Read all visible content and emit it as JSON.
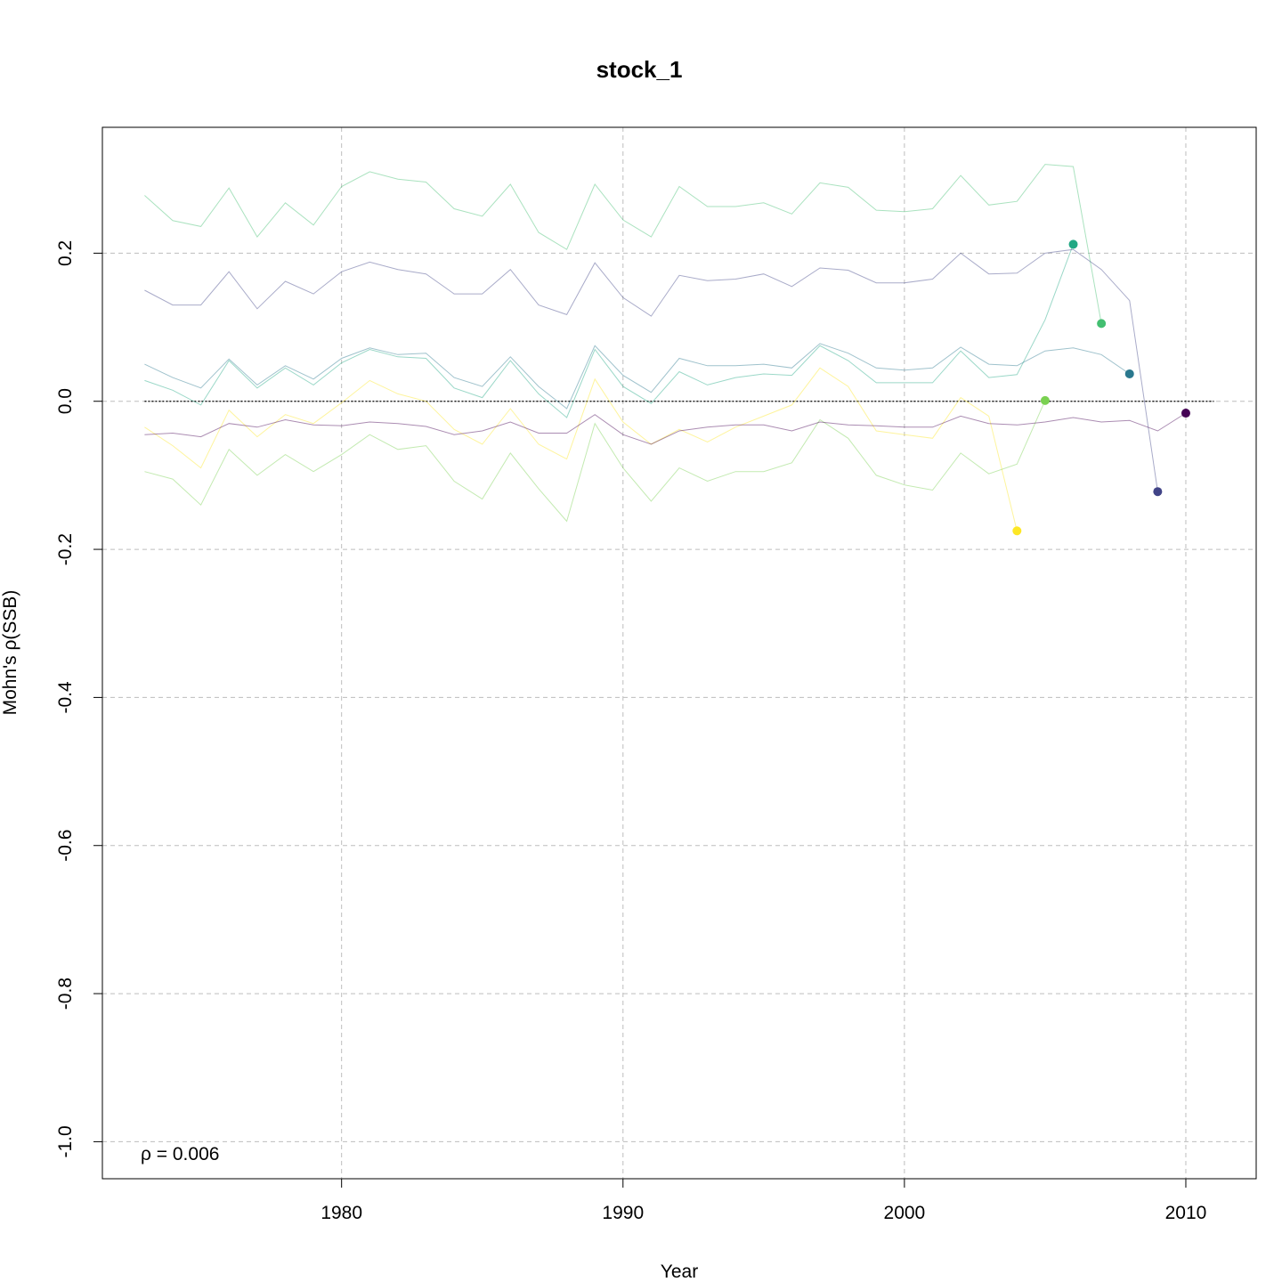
{
  "chart_data": {
    "type": "line",
    "title": "stock_1",
    "xlabel": "Year",
    "ylabel": "Mohn's ρ(SSB)",
    "xlim": [
      1971.5,
      2012.5
    ],
    "ylim": [
      -1.05,
      0.37
    ],
    "x_ticks": [
      1980,
      1990,
      2000,
      2010
    ],
    "x_tick_labels": [
      "1980",
      "1990",
      "2000",
      "2010"
    ],
    "y_ticks": [
      0.2,
      0.0,
      -0.2,
      -0.4,
      -0.6,
      -0.8,
      -1.0
    ],
    "y_tick_labels": [
      "0.2",
      "0.0",
      "-0.2",
      "-0.4",
      "-0.6",
      "-0.8",
      "-1.0"
    ],
    "grid": true,
    "reference_line": {
      "y": 0,
      "x_from": 1973,
      "x_to": 2011,
      "style": "dotted"
    },
    "annotation": "ρ = 0.006",
    "series": [
      {
        "color": "#FDE725",
        "x": [
          1973,
          1974,
          1975,
          1976,
          1977,
          1978,
          1979,
          1980,
          1981,
          1982,
          1983,
          1984,
          1985,
          1986,
          1987,
          1988,
          1989,
          1990,
          1991,
          1992,
          1993,
          1994,
          1995,
          1996,
          1997,
          1998,
          1999,
          2000,
          2001,
          2002,
          2003,
          2004
        ],
        "values": [
          -0.035,
          -0.06,
          -0.09,
          -0.012,
          -0.048,
          -0.018,
          -0.03,
          -0.002,
          0.028,
          0.01,
          0.0,
          -0.038,
          -0.058,
          -0.01,
          -0.058,
          -0.078,
          0.03,
          -0.028,
          -0.058,
          -0.038,
          -0.055,
          -0.035,
          -0.02,
          -0.005,
          0.045,
          0.02,
          -0.04,
          -0.045,
          -0.05,
          0.005,
          -0.02,
          -0.175
        ],
        "end_point": [
          2004,
          -0.175
        ]
      },
      {
        "color": "#7AD151",
        "x": [
          1973,
          1974,
          1975,
          1976,
          1977,
          1978,
          1979,
          1980,
          1981,
          1982,
          1983,
          1984,
          1985,
          1986,
          1987,
          1988,
          1989,
          1990,
          1991,
          1992,
          1993,
          1994,
          1995,
          1996,
          1997,
          1998,
          1999,
          2000,
          2001,
          2002,
          2003,
          2004,
          2005
        ],
        "values": [
          -0.095,
          -0.105,
          -0.14,
          -0.065,
          -0.1,
          -0.072,
          -0.095,
          -0.072,
          -0.045,
          -0.065,
          -0.06,
          -0.108,
          -0.132,
          -0.07,
          -0.118,
          -0.162,
          -0.03,
          -0.09,
          -0.135,
          -0.09,
          -0.108,
          -0.095,
          -0.095,
          -0.083,
          -0.025,
          -0.05,
          -0.1,
          -0.113,
          -0.12,
          -0.07,
          -0.098,
          -0.085,
          0.001
        ],
        "end_point": [
          2005,
          0.001
        ]
      },
      {
        "color": "#22A884",
        "x": [
          1973,
          1974,
          1975,
          1976,
          1977,
          1978,
          1979,
          1980,
          1981,
          1982,
          1983,
          1984,
          1985,
          1986,
          1987,
          1988,
          1989,
          1990,
          1991,
          1992,
          1993,
          1994,
          1995,
          1996,
          1997,
          1998,
          1999,
          2000,
          2001,
          2002,
          2003,
          2004,
          2005,
          2006
        ],
        "values": [
          0.028,
          0.015,
          -0.005,
          0.055,
          0.018,
          0.045,
          0.022,
          0.052,
          0.07,
          0.06,
          0.058,
          0.018,
          0.005,
          0.055,
          0.01,
          -0.022,
          0.07,
          0.02,
          -0.003,
          0.04,
          0.022,
          0.032,
          0.037,
          0.035,
          0.075,
          0.055,
          0.025,
          0.025,
          0.025,
          0.068,
          0.032,
          0.036,
          0.11,
          0.212
        ],
        "end_point": [
          2006,
          0.212
        ]
      },
      {
        "color": "#43BF71",
        "x": [
          1973,
          1974,
          1975,
          1976,
          1977,
          1978,
          1979,
          1980,
          1981,
          1982,
          1983,
          1984,
          1985,
          1986,
          1987,
          1988,
          1989,
          1990,
          1991,
          1992,
          1993,
          1994,
          1995,
          1996,
          1997,
          1998,
          1999,
          2000,
          2001,
          2002,
          2003,
          2004,
          2005,
          2006,
          2007
        ],
        "values": [
          0.278,
          0.244,
          0.236,
          0.288,
          0.222,
          0.268,
          0.238,
          0.29,
          0.31,
          0.3,
          0.296,
          0.26,
          0.25,
          0.293,
          0.228,
          0.205,
          0.293,
          0.245,
          0.222,
          0.29,
          0.263,
          0.263,
          0.268,
          0.253,
          0.295,
          0.289,
          0.258,
          0.256,
          0.26,
          0.305,
          0.265,
          0.27,
          0.32,
          0.317,
          0.105
        ],
        "end_point": [
          2007,
          0.105
        ]
      },
      {
        "color": "#2A788E",
        "x": [
          1973,
          1974,
          1975,
          1976,
          1977,
          1978,
          1979,
          1980,
          1981,
          1982,
          1983,
          1984,
          1985,
          1986,
          1987,
          1988,
          1989,
          1990,
          1991,
          1992,
          1993,
          1994,
          1995,
          1996,
          1997,
          1998,
          1999,
          2000,
          2001,
          2002,
          2003,
          2004,
          2005,
          2006,
          2007,
          2008
        ],
        "values": [
          0.05,
          0.032,
          0.018,
          0.057,
          0.022,
          0.048,
          0.03,
          0.058,
          0.072,
          0.063,
          0.065,
          0.032,
          0.02,
          0.06,
          0.02,
          -0.01,
          0.075,
          0.035,
          0.012,
          0.058,
          0.048,
          0.048,
          0.05,
          0.045,
          0.078,
          0.065,
          0.045,
          0.042,
          0.045,
          0.073,
          0.05,
          0.048,
          0.068,
          0.072,
          0.063,
          0.037
        ],
        "end_point": [
          2008,
          0.037
        ]
      },
      {
        "color": "#414487",
        "x": [
          1973,
          1974,
          1975,
          1976,
          1977,
          1978,
          1979,
          1980,
          1981,
          1982,
          1983,
          1984,
          1985,
          1986,
          1987,
          1988,
          1989,
          1990,
          1991,
          1992,
          1993,
          1994,
          1995,
          1996,
          1997,
          1998,
          1999,
          2000,
          2001,
          2002,
          2003,
          2004,
          2005,
          2006,
          2007,
          2008,
          2009
        ],
        "values": [
          0.15,
          0.13,
          0.13,
          0.175,
          0.125,
          0.162,
          0.145,
          0.175,
          0.188,
          0.178,
          0.172,
          0.145,
          0.145,
          0.178,
          0.13,
          0.117,
          0.187,
          0.14,
          0.115,
          0.17,
          0.163,
          0.165,
          0.172,
          0.155,
          0.18,
          0.177,
          0.16,
          0.16,
          0.165,
          0.2,
          0.172,
          0.173,
          0.2,
          0.205,
          0.178,
          0.136,
          -0.122
        ],
        "end_point": [
          2009,
          -0.122
        ]
      },
      {
        "color": "#440154",
        "x": [
          1973,
          1974,
          1975,
          1976,
          1977,
          1978,
          1979,
          1980,
          1981,
          1982,
          1983,
          1984,
          1985,
          1986,
          1987,
          1988,
          1989,
          1990,
          1991,
          1992,
          1993,
          1994,
          1995,
          1996,
          1997,
          1998,
          1999,
          2000,
          2001,
          2002,
          2003,
          2004,
          2005,
          2006,
          2007,
          2008,
          2009,
          2010
        ],
        "values": [
          -0.045,
          -0.043,
          -0.048,
          -0.03,
          -0.035,
          -0.025,
          -0.032,
          -0.033,
          -0.028,
          -0.03,
          -0.034,
          -0.045,
          -0.04,
          -0.028,
          -0.043,
          -0.043,
          -0.018,
          -0.045,
          -0.058,
          -0.04,
          -0.035,
          -0.032,
          -0.032,
          -0.04,
          -0.028,
          -0.032,
          -0.033,
          -0.035,
          -0.035,
          -0.02,
          -0.03,
          -0.032,
          -0.028,
          -0.022,
          -0.028,
          -0.026,
          -0.04,
          -0.016
        ],
        "end_point": [
          2010,
          -0.016
        ]
      }
    ]
  }
}
